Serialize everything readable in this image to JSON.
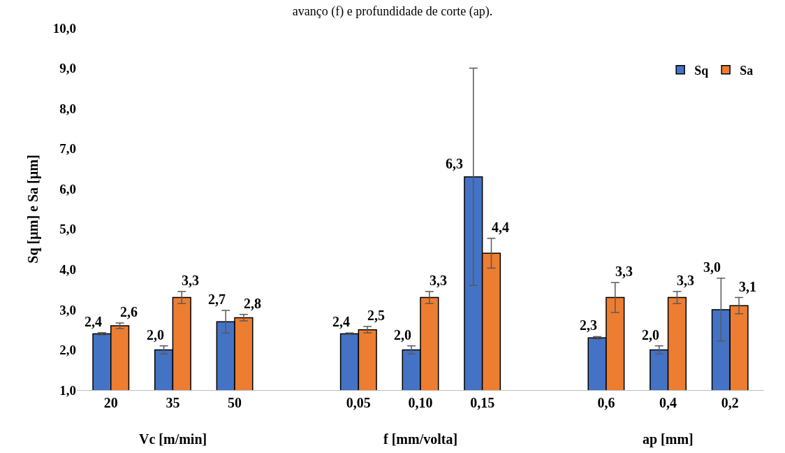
{
  "chart_data": {
    "type": "bar",
    "title": "avanço (f) e profundidade de corte (ap).",
    "ylabel": "Sq [µm] e Sa [µm]",
    "categories": [
      "20",
      "35",
      "50",
      null,
      "0,05",
      "0,10",
      "0,15",
      null,
      "0,6",
      "0,4",
      "0,2"
    ],
    "series": [
      {
        "name": "Sq",
        "color": "#4472c4",
        "values": [
          2.4,
          2.0,
          2.7,
          null,
          2.4,
          2.0,
          6.3,
          null,
          2.3,
          2.0,
          3.0
        ],
        "errors": [
          0.03,
          0.1,
          0.28,
          null,
          0.02,
          0.1,
          2.7,
          null,
          0.03,
          0.1,
          0.78
        ],
        "value_labels": [
          "2,4",
          "2,0",
          "2,7",
          null,
          "2,4",
          "2,0",
          "6,3",
          null,
          "2,3",
          "2,0",
          "3,0"
        ]
      },
      {
        "name": "Sa",
        "color": "#ed7d31",
        "values": [
          2.6,
          3.3,
          2.8,
          null,
          2.5,
          3.3,
          4.4,
          null,
          3.3,
          3.3,
          3.1
        ],
        "errors": [
          0.07,
          0.15,
          0.08,
          null,
          0.08,
          0.15,
          0.37,
          null,
          0.37,
          0.15,
          0.2
        ],
        "value_labels": [
          "2,6",
          "3,3",
          "2,8",
          null,
          "2,5",
          "3,3",
          "4,4",
          null,
          "3,3",
          "3,3",
          "3,1"
        ]
      }
    ],
    "annotations": [
      "Vc [m/min]",
      "f [mm/volta]",
      "ap [mm]"
    ],
    "ylim": [
      1,
      10
    ],
    "yticks": [
      {
        "value": 1,
        "label": "1,0"
      },
      {
        "value": 2,
        "label": "2,0"
      },
      {
        "value": 3,
        "label": "3,0"
      },
      {
        "value": 4,
        "label": "4,0"
      },
      {
        "value": 5,
        "label": "5,0"
      },
      {
        "value": 6,
        "label": "6,0"
      },
      {
        "value": 7,
        "label": "7,0"
      },
      {
        "value": 8,
        "label": "8,0"
      },
      {
        "value": 9,
        "label": "9,0"
      },
      {
        "value": 10,
        "label": "10,0"
      }
    ],
    "legend": "top right"
  }
}
